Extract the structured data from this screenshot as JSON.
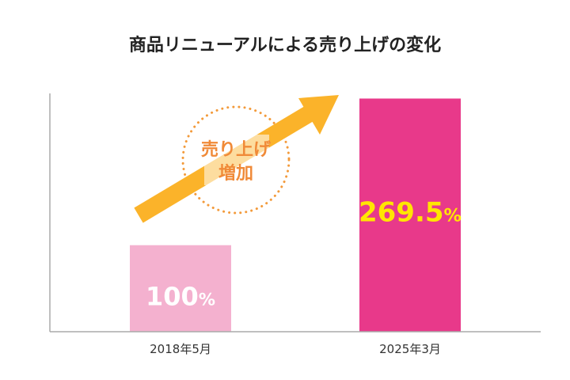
{
  "chart_data": {
    "type": "bar",
    "title": "商品リニューアルによる売り上げの変化",
    "categories": [
      "2018年5月",
      "2025年3月"
    ],
    "values": [
      100,
      269.5
    ],
    "value_labels": [
      "100%",
      "269.5%"
    ],
    "unit": "%",
    "ylim": [
      0,
      280
    ],
    "grid": false,
    "annotation": {
      "lines": [
        "売り上げ",
        "増加"
      ]
    }
  },
  "colors": {
    "bar_1": "#f4b1cf",
    "bar_2": "#e8398a",
    "label_1": "#ffffff",
    "label_2": "#ffe600",
    "arrow": "#fbb32a",
    "annotation_text": "#f08a38",
    "annotation_ring": "#f39a3a",
    "axis": "#aaaaaa"
  }
}
